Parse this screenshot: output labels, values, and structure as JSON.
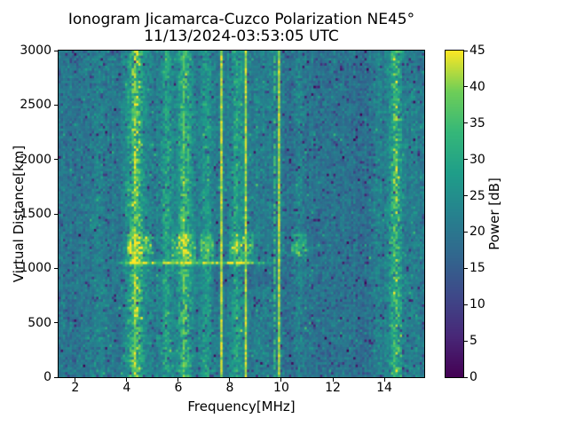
{
  "chart_data": {
    "type": "heatmap",
    "title": "Ionogram Jicamarca-Cuzco Polarization NE45°",
    "subtitle": "11/13/2024-03:53:05 UTC",
    "xlabel": "Frequency[MHz]",
    "ylabel": "Virtual Distance[km]",
    "xlim": [
      1.35,
      15.55
    ],
    "ylim": [
      0,
      3000
    ],
    "xticks": [
      2,
      4,
      6,
      8,
      10,
      12,
      14
    ],
    "yticks": [
      0,
      500,
      1000,
      1500,
      2000,
      2500,
      3000
    ],
    "grid": false,
    "colorbar": {
      "label": "Power [dB]",
      "min": 0,
      "max": 45,
      "ticks": [
        0,
        5,
        10,
        15,
        20,
        25,
        30,
        35,
        40,
        45
      ],
      "colormap": "viridis",
      "colormap_stops": [
        "#440154",
        "#482878",
        "#3e4989",
        "#31688e",
        "#26828e",
        "#1f9e89",
        "#35b779",
        "#6ece58",
        "#fde725"
      ]
    },
    "noise": {
      "floor_db": 21.5,
      "spread_db": 4.5,
      "seed": 20241113
    },
    "rfi_bands": [
      {
        "center_mhz": 4.35,
        "width_mhz": 0.3,
        "peak_db": 16
      },
      {
        "center_mhz": 5.55,
        "width_mhz": 0.22,
        "peak_db": 8
      },
      {
        "center_mhz": 6.25,
        "width_mhz": 0.26,
        "peak_db": 13
      },
      {
        "center_mhz": 7.1,
        "width_mhz": 0.18,
        "peak_db": 7
      },
      {
        "center_mhz": 8.3,
        "width_mhz": 0.22,
        "peak_db": 8
      },
      {
        "center_mhz": 10.7,
        "width_mhz": 0.18,
        "peak_db": 5
      },
      {
        "center_mhz": 14.45,
        "width_mhz": 0.22,
        "peak_db": 14
      },
      {
        "center_mhz": 2.9,
        "width_mhz": 0.15,
        "peak_db": 3
      }
    ],
    "rfi_lines": [
      {
        "freq_mhz": 7.7,
        "peak_db": 45,
        "duty": 1
      },
      {
        "freq_mhz": 8.62,
        "peak_db": 44,
        "duty": 1
      },
      {
        "freq_mhz": 9.95,
        "peak_db": 44,
        "duty": 1
      },
      {
        "freq_mhz": 9.78,
        "peak_db": 36,
        "duty": 0.45
      },
      {
        "freq_mhz": 8.15,
        "peak_db": 34,
        "duty": 0.4
      },
      {
        "freq_mhz": 4.3,
        "peak_db": 42,
        "duty": 0.8
      },
      {
        "freq_mhz": 6.22,
        "peak_db": 40,
        "duty": 0.7
      },
      {
        "freq_mhz": 5.55,
        "peak_db": 32,
        "duty": 0.35
      }
    ],
    "echo_trace": {
      "altitude_km": 1050,
      "freq_range_mhz": [
        3.4,
        9.7
      ],
      "strong_range_mhz": [
        4.15,
        8.6
      ],
      "peak_db": 42
    },
    "echo_blobs": {
      "altitude_range_km": [
        1050,
        1350
      ],
      "freq_ranges_mhz": [
        [
          4.0,
          4.95
        ],
        [
          5.75,
          6.65
        ],
        [
          6.9,
          7.35
        ],
        [
          7.95,
          8.9
        ],
        [
          10.35,
          11.0
        ]
      ],
      "peak_db": 13
    },
    "quiet_zones": [
      {
        "freq_range_mhz": [
          1.35,
          2.35
        ],
        "delta_db": -1.5
      },
      {
        "freq_range_mhz": [
          2.5,
          3.9
        ],
        "delta_db": -1
      },
      {
        "freq_range_mhz": [
          10.15,
          13.6
        ],
        "delta_db": -2.5
      },
      {
        "freq_range_mhz": [
          7.4,
          10.1
        ],
        "alt_range_km": [
          840,
          1030
        ],
        "delta_db": -3
      }
    ]
  }
}
